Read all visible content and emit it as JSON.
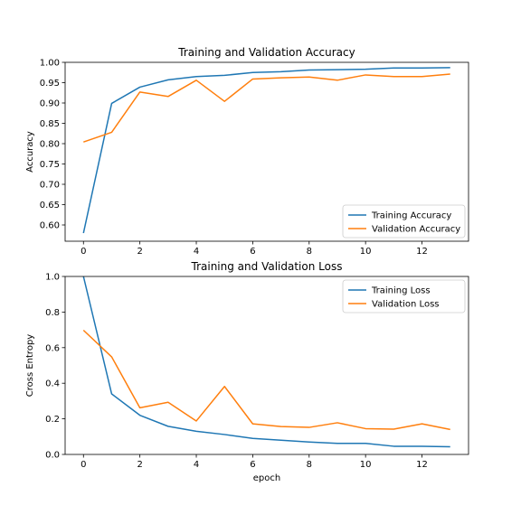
{
  "chart_data": [
    {
      "type": "line",
      "title": "Training and Validation Accuracy",
      "xlabel": "",
      "ylabel": "Accuracy",
      "xlim": [
        -0.65,
        13.65
      ],
      "ylim": [
        0.56,
        1.0
      ],
      "xticks": [
        0,
        2,
        4,
        6,
        8,
        10,
        12
      ],
      "yticks": [
        0.6,
        0.65,
        0.7,
        0.75,
        0.8,
        0.85,
        0.9,
        0.95,
        1.0
      ],
      "ytick_labels": [
        "0.60",
        "0.65",
        "0.70",
        "0.75",
        "0.80",
        "0.85",
        "0.90",
        "0.95",
        "1.00"
      ],
      "legend_position": "lower-right",
      "grid": false,
      "x": [
        0,
        1,
        2,
        3,
        4,
        5,
        6,
        7,
        8,
        9,
        10,
        11,
        12,
        13
      ],
      "series": [
        {
          "name": "Training Accuracy",
          "color": "#1f77b4",
          "values": [
            0.58,
            0.899,
            0.939,
            0.957,
            0.965,
            0.968,
            0.975,
            0.977,
            0.981,
            0.982,
            0.983,
            0.986,
            0.986,
            0.987
          ]
        },
        {
          "name": "Validation Accuracy",
          "color": "#ff7f0e",
          "values": [
            0.804,
            0.828,
            0.927,
            0.916,
            0.956,
            0.904,
            0.959,
            0.962,
            0.964,
            0.956,
            0.969,
            0.965,
            0.965,
            0.971
          ]
        }
      ]
    },
    {
      "type": "line",
      "title": "Training and Validation Loss",
      "xlabel": "epoch",
      "ylabel": "Cross Entropy",
      "xlim": [
        -0.65,
        13.65
      ],
      "ylim": [
        0.0,
        1.0
      ],
      "xticks": [
        0,
        2,
        4,
        6,
        8,
        10,
        12
      ],
      "yticks": [
        0.0,
        0.2,
        0.4,
        0.6,
        0.8,
        1.0
      ],
      "ytick_labels": [
        "0.0",
        "0.2",
        "0.4",
        "0.6",
        "0.8",
        "1.0"
      ],
      "legend_position": "upper-right",
      "grid": false,
      "x": [
        0,
        1,
        2,
        3,
        4,
        5,
        6,
        7,
        8,
        9,
        10,
        11,
        12,
        13
      ],
      "series": [
        {
          "name": "Training Loss",
          "color": "#1f77b4",
          "values": [
            1.0,
            0.34,
            0.22,
            0.158,
            0.13,
            0.112,
            0.09,
            0.08,
            0.07,
            0.062,
            0.062,
            0.046,
            0.046,
            0.043
          ]
        },
        {
          "name": "Validation Loss",
          "color": "#ff7f0e",
          "values": [
            0.698,
            0.548,
            0.262,
            0.293,
            0.188,
            0.382,
            0.172,
            0.157,
            0.152,
            0.178,
            0.145,
            0.142,
            0.172,
            0.14
          ]
        }
      ]
    }
  ]
}
